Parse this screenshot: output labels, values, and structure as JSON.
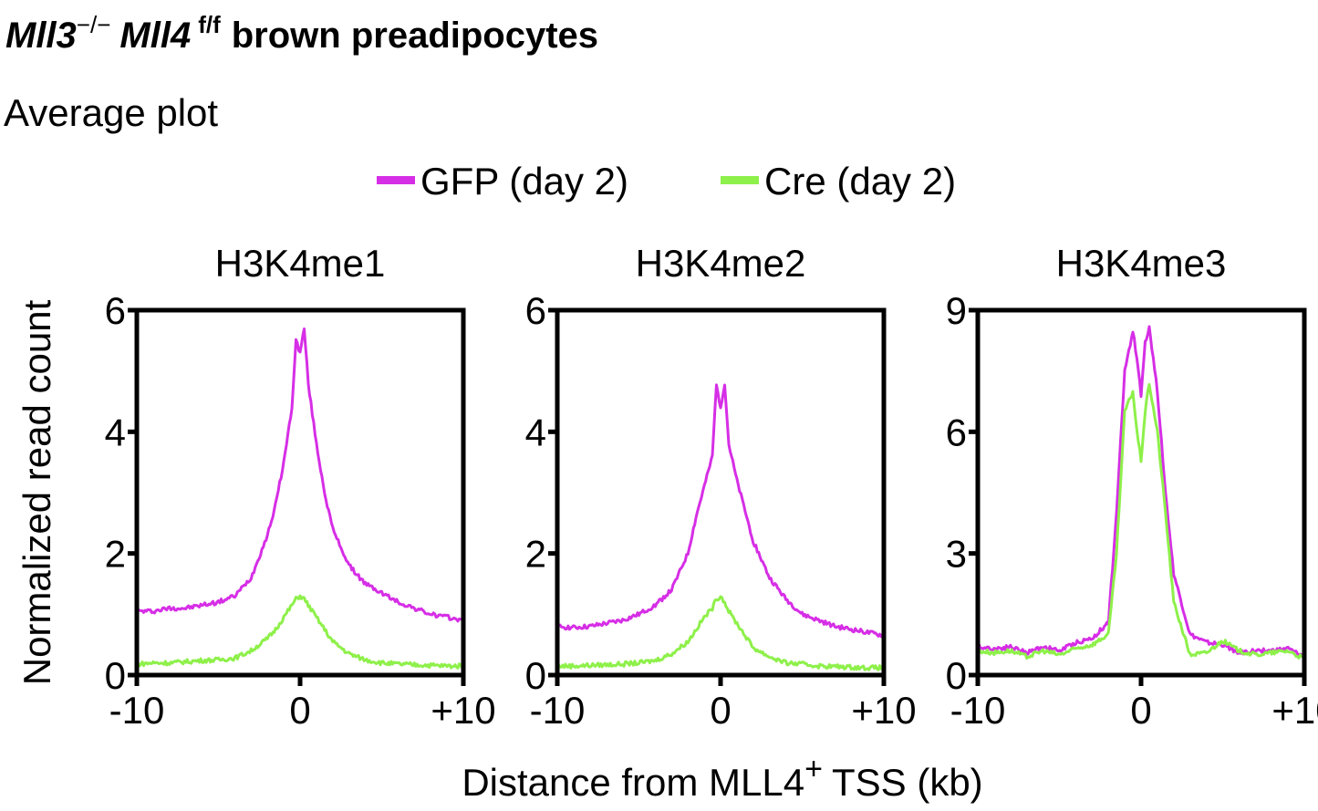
{
  "header": {
    "title_gene1": "Mll3",
    "title_sup1": "−/−",
    "title_gene2": "Mll4",
    "title_sup2": "f/f",
    "title_rest": "brown preadipocytes",
    "subtitle": "Average plot"
  },
  "legend": {
    "items": [
      {
        "label": "GFP (day 2)",
        "color": "#d62ee6"
      },
      {
        "label": "Cre (day 2)",
        "color": "#8ef04a"
      }
    ]
  },
  "ylabel": "Normalized read count",
  "xlabel_main": "Distance from MLL4",
  "xlabel_sup": "+",
  "xlabel_rest": "TSS (kb)",
  "chart_data": [
    {
      "type": "line",
      "title": "H3K4me1",
      "xlim": [
        -10,
        10
      ],
      "ylim": [
        0,
        6
      ],
      "xticks": [
        {
          "value": -10,
          "label": "-10"
        },
        {
          "value": 0,
          "label": "0"
        },
        {
          "value": 10,
          "label": "+10"
        }
      ],
      "yticks": [
        {
          "value": 0,
          "label": "0"
        },
        {
          "value": 2,
          "label": "2"
        },
        {
          "value": 4,
          "label": "4"
        },
        {
          "value": 6,
          "label": "6"
        }
      ],
      "x": [
        -10,
        -9,
        -8,
        -7,
        -6,
        -5,
        -4,
        -3,
        -2,
        -1.5,
        -1,
        -0.5,
        -0.25,
        0,
        0.25,
        0.5,
        1,
        1.5,
        2,
        3,
        4,
        5,
        6,
        7,
        8,
        9,
        10
      ],
      "series": [
        {
          "name": "GFP (day 2)",
          "values": [
            1.05,
            1.05,
            1.1,
            1.1,
            1.15,
            1.2,
            1.3,
            1.6,
            2.3,
            2.8,
            3.5,
            4.4,
            5.5,
            5.3,
            5.7,
            4.8,
            3.8,
            3.0,
            2.4,
            1.8,
            1.5,
            1.35,
            1.2,
            1.1,
            1.0,
            0.95,
            0.9
          ]
        },
        {
          "name": "Cre (day 2)",
          "values": [
            0.18,
            0.2,
            0.2,
            0.22,
            0.24,
            0.25,
            0.28,
            0.4,
            0.6,
            0.75,
            0.95,
            1.15,
            1.25,
            1.3,
            1.25,
            1.15,
            0.95,
            0.75,
            0.55,
            0.35,
            0.25,
            0.2,
            0.18,
            0.17,
            0.16,
            0.15,
            0.15
          ]
        }
      ]
    },
    {
      "type": "line",
      "title": "H3K4me2",
      "xlim": [
        -10,
        10
      ],
      "ylim": [
        0,
        6
      ],
      "xticks": [
        {
          "value": -10,
          "label": "-10"
        },
        {
          "value": 0,
          "label": "0"
        },
        {
          "value": 10,
          "label": "+10"
        }
      ],
      "yticks": [
        {
          "value": 0,
          "label": "0"
        },
        {
          "value": 2,
          "label": "2"
        },
        {
          "value": 4,
          "label": "4"
        },
        {
          "value": 6,
          "label": "6"
        }
      ],
      "x": [
        -10,
        -9,
        -8,
        -7,
        -6,
        -5,
        -4,
        -3,
        -2,
        -1.5,
        -1,
        -0.5,
        -0.25,
        0,
        0.25,
        0.5,
        1,
        1.5,
        2,
        3,
        4,
        5,
        6,
        7,
        8,
        9,
        10
      ],
      "series": [
        {
          "name": "GFP (day 2)",
          "values": [
            0.8,
            0.78,
            0.8,
            0.85,
            0.9,
            1.0,
            1.15,
            1.4,
            2.0,
            2.6,
            3.1,
            3.6,
            4.8,
            4.4,
            4.8,
            3.8,
            3.2,
            2.7,
            2.2,
            1.6,
            1.25,
            1.0,
            0.9,
            0.8,
            0.75,
            0.7,
            0.65
          ]
        },
        {
          "name": "Cre (day 2)",
          "values": [
            0.15,
            0.15,
            0.16,
            0.17,
            0.18,
            0.2,
            0.24,
            0.35,
            0.55,
            0.75,
            0.95,
            1.1,
            1.25,
            1.3,
            1.2,
            1.05,
            0.85,
            0.65,
            0.45,
            0.3,
            0.2,
            0.18,
            0.15,
            0.14,
            0.13,
            0.12,
            0.12
          ]
        }
      ]
    },
    {
      "type": "line",
      "title": "H3K4me3",
      "xlim": [
        -10,
        10
      ],
      "ylim": [
        0,
        9
      ],
      "xticks": [
        {
          "value": -10,
          "label": "-10"
        },
        {
          "value": 0,
          "label": "0"
        },
        {
          "value": 10,
          "label": "+10"
        }
      ],
      "yticks": [
        {
          "value": 0,
          "label": "0"
        },
        {
          "value": 3,
          "label": "3"
        },
        {
          "value": 6,
          "label": "6"
        },
        {
          "value": 9,
          "label": "9"
        }
      ],
      "x": [
        -10,
        -9,
        -8,
        -7,
        -6,
        -5,
        -4,
        -3,
        -2,
        -1.5,
        -1,
        -0.5,
        -0.25,
        0,
        0.25,
        0.5,
        1,
        1.5,
        2,
        3,
        4,
        5,
        6,
        7,
        8,
        9,
        10
      ],
      "series": [
        {
          "name": "GFP (day 2)",
          "values": [
            0.7,
            0.65,
            0.7,
            0.55,
            0.7,
            0.6,
            0.8,
            0.9,
            1.3,
            4.0,
            7.5,
            8.5,
            7.8,
            6.9,
            8.2,
            8.6,
            7.0,
            4.5,
            2.5,
            1.0,
            0.8,
            0.75,
            0.55,
            0.6,
            0.6,
            0.65,
            0.45
          ]
        },
        {
          "name": "Cre (day 2)",
          "values": [
            0.6,
            0.55,
            0.6,
            0.45,
            0.6,
            0.5,
            0.65,
            0.75,
            1.0,
            3.0,
            6.5,
            7.0,
            6.0,
            5.3,
            6.5,
            7.2,
            6.0,
            4.0,
            1.8,
            0.5,
            0.55,
            0.85,
            0.6,
            0.5,
            0.55,
            0.6,
            0.4
          ]
        }
      ]
    }
  ]
}
